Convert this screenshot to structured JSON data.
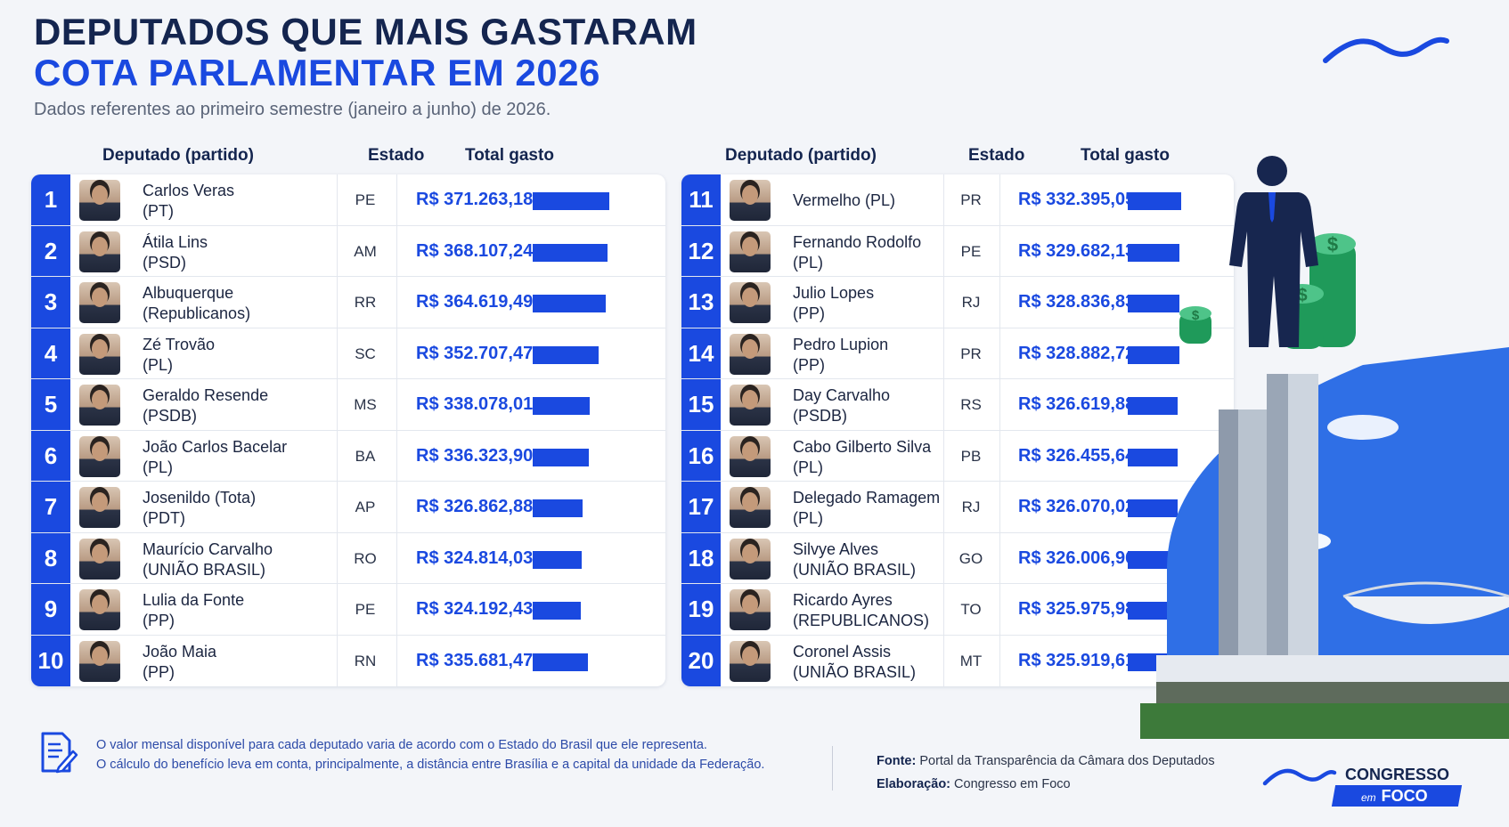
{
  "header": {
    "title_line1": "DEPUTADOS QUE MAIS GASTARAM",
    "title_line2": "COTA PARLAMENTAR EM 2026",
    "subtitle": "Dados referentes ao primeiro semestre (janeiro a junho) de 2026."
  },
  "columns": {
    "deputado": "Deputado (partido)",
    "estado": "Estado",
    "total": "Total gasto"
  },
  "colors": {
    "accent": "#1a49e0",
    "navy": "#14254f",
    "money": "#1f9a5a"
  },
  "chart_data": {
    "type": "bar",
    "title": "DEPUTADOS QUE MAIS GASTARAM COTA PARLAMENTAR EM 2026",
    "unit": "R$",
    "rows": [
      {
        "rank": "1",
        "name": "Carlos Veras",
        "party": "(PT)",
        "uf": "PE",
        "label": "R$ 371.263,18",
        "value": 371263.18
      },
      {
        "rank": "2",
        "name": "Átila Lins",
        "party": "(PSD)",
        "uf": "AM",
        "label": "R$ 368.107,24",
        "value": 368107.24
      },
      {
        "rank": "3",
        "name": "Albuquerque",
        "party": "(Republicanos)",
        "uf": "RR",
        "label": "R$ 364.619,49",
        "value": 364619.49
      },
      {
        "rank": "4",
        "name": "Zé Trovão",
        "party": "(PL)",
        "uf": "SC",
        "label": "R$ 352.707,47",
        "value": 352707.47
      },
      {
        "rank": "5",
        "name": "Geraldo Resende",
        "party": "(PSDB)",
        "uf": "MS",
        "label": "R$ 338.078,01",
        "value": 338078.01
      },
      {
        "rank": "6",
        "name": "João Carlos Bacelar",
        "party": "(PL)",
        "uf": "BA",
        "label": "R$ 336.323,90",
        "value": 336323.9
      },
      {
        "rank": "7",
        "name": "Josenildo (Tota)",
        "party": "(PDT)",
        "uf": "AP",
        "label": "R$ 326.862,88",
        "value": 326862.88
      },
      {
        "rank": "8",
        "name": "Maurício Carvalho",
        "party": "(UNIÃO BRASIL)",
        "uf": "RO",
        "label": "R$ 324.814,03",
        "value": 324814.03
      },
      {
        "rank": "9",
        "name": "Lulia da Fonte",
        "party": "(PP)",
        "uf": "PE",
        "label": "R$ 324.192,43",
        "value": 324192.43
      },
      {
        "rank": "10",
        "name": "João Maia",
        "party": "(PP)",
        "uf": "RN",
        "label": "R$ 335.681,47",
        "value": 335681.47
      },
      {
        "rank": "11",
        "name": "Vermelho (PL)",
        "party": "",
        "uf": "PR",
        "label": "R$ 332.395,05",
        "value": 332395.05
      },
      {
        "rank": "12",
        "name": "Fernando Rodolfo",
        "party": "(PL)",
        "uf": "PE",
        "label": "R$ 329.682,13",
        "value": 329682.13
      },
      {
        "rank": "13",
        "name": "Julio Lopes",
        "party": "(PP)",
        "uf": "RJ",
        "label": "R$ 328.836,83",
        "value": 328836.83
      },
      {
        "rank": "14",
        "name": "Pedro Lupion",
        "party": "(PP)",
        "uf": "PR",
        "label": "R$ 328.882,72",
        "value": 328882.72
      },
      {
        "rank": "15",
        "name": "Day Carvalho",
        "party": "(PSDB)",
        "uf": "RS",
        "label": "R$ 326.619,88",
        "value": 326619.88
      },
      {
        "rank": "16",
        "name": "Cabo Gilberto Silva",
        "party": "(PL)",
        "uf": "PB",
        "label": "R$ 326.455,64",
        "value": 326455.64
      },
      {
        "rank": "17",
        "name": "Delegado Ramagem",
        "party": "(PL)",
        "uf": "RJ",
        "label": "R$ 326.070,02",
        "value": 326070.02
      },
      {
        "rank": "18",
        "name": "Silvye Alves",
        "party": "(UNIÃO BRASIL)",
        "uf": "GO",
        "label": "R$ 326.006,96",
        "value": 326006.96
      },
      {
        "rank": "19",
        "name": "Ricardo Ayres",
        "party": "(REPUBLICANOS)",
        "uf": "TO",
        "label": "R$ 325.975,98",
        "value": 325975.98
      },
      {
        "rank": "20",
        "name": "Coronel Assis",
        "party": "(UNIÃO BRASIL)",
        "uf": "MT",
        "label": "R$ 325.919,61",
        "value": 325919.61
      }
    ]
  },
  "footer": {
    "note_line1": "O valor mensal disponível para cada deputado varia de acordo com o Estado do Brasil que ele representa.",
    "note_line2": "O cálculo do benefício leva em conta, principalmente, a distância entre Brasília e a capital da unidade da Federação.",
    "source_label": "Fonte:",
    "source_text": "Portal da Transparência da Câmara dos Deputados",
    "credit_label": "Elaboração:",
    "credit_text": "Congresso em Foco"
  },
  "brand": {
    "name": "CONGRESSO",
    "sub_small": "em",
    "sub_big": "FOCO"
  },
  "icons": [
    "wave-logo-icon",
    "document-pen-icon",
    "businessman-icon",
    "money-stack-icon",
    "congress-building-icon"
  ]
}
